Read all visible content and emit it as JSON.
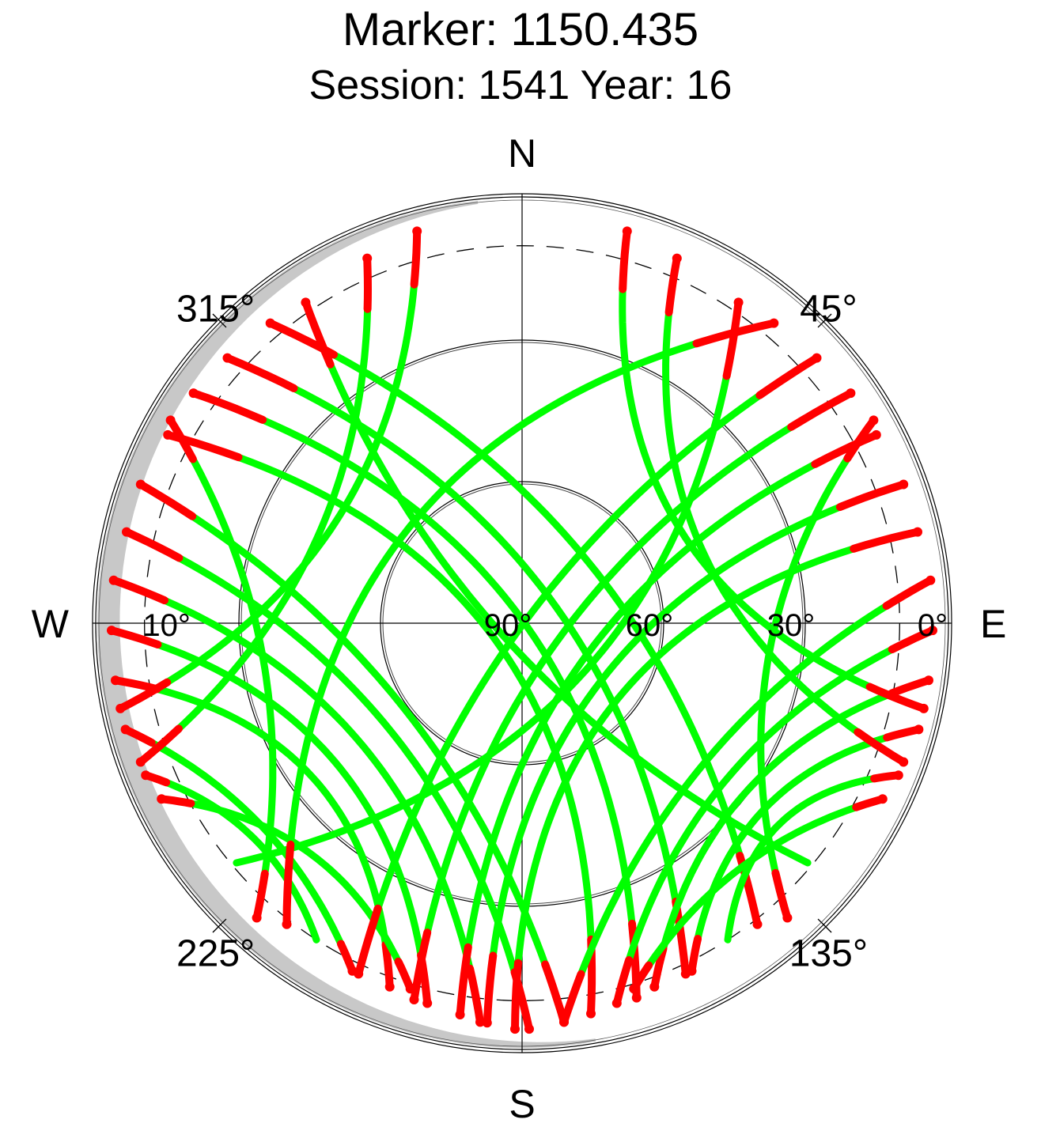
{
  "chart_data": {
    "type": "scatter",
    "projection": "polar sky plot (azimuth vs elevation)",
    "title": "Marker: 1150.435",
    "subtitle": "Session: 1541 Year: 16",
    "compass_labels": {
      "north": "N",
      "south": "S",
      "east": "E",
      "west": "W"
    },
    "azimuth_tick_labels": [
      {
        "azimuth": 45,
        "label": "45°"
      },
      {
        "azimuth": 135,
        "label": "135°"
      },
      {
        "azimuth": 225,
        "label": "225°"
      },
      {
        "azimuth": 315,
        "label": "315°"
      }
    ],
    "elevation_tick_labels": [
      {
        "elevation": 0,
        "label": "0°"
      },
      {
        "elevation": 30,
        "label": "30°"
      },
      {
        "elevation": 60,
        "label": "60°"
      },
      {
        "elevation": 90,
        "label": "90°"
      },
      {
        "elevation": 10,
        "label": "10°"
      }
    ],
    "elevation_circles": [
      30,
      60
    ],
    "cutoff_elevation_dashed": 10,
    "horizon_mask_color": "#c8c8c8",
    "series_colors": {
      "tracked": "#00ff00",
      "low_elevation": "#ff0000"
    },
    "tracks": [
      {
        "start": {
          "az": 326,
          "el": 8
        },
        "end": {
          "az": 130,
          "el": 11
        }
      },
      {
        "start": {
          "az": 320,
          "el": 7
        },
        "end": {
          "az": 142,
          "el": 9
        }
      },
      {
        "start": {
          "az": 312,
          "el": 6
        },
        "end": {
          "az": 155,
          "el": 8
        }
      },
      {
        "start": {
          "az": 305,
          "el": 5
        },
        "end": {
          "az": 163,
          "el": 7
        }
      },
      {
        "start": {
          "az": 298,
          "el": 5
        },
        "end": {
          "az": 170,
          "el": 6
        }
      },
      {
        "start": {
          "az": 290,
          "el": 4
        },
        "end": {
          "az": 174,
          "el": 5
        }
      },
      {
        "start": {
          "az": 283,
          "el": 4
        },
        "end": {
          "az": 179,
          "el": 4
        }
      },
      {
        "start": {
          "az": 276,
          "el": 3
        },
        "end": {
          "az": 186,
          "el": 5
        }
      },
      {
        "start": {
          "az": 269,
          "el": 3
        },
        "end": {
          "az": 194,
          "el": 7
        }
      },
      {
        "start": {
          "az": 262,
          "el": 3
        },
        "end": {
          "az": 200,
          "el": 8
        }
      },
      {
        "start": {
          "az": 255,
          "el": 3
        },
        "end": {
          "az": 206,
          "el": 8
        }
      },
      {
        "start": {
          "az": 248,
          "el": 4
        },
        "end": {
          "az": 213,
          "el": 10
        }
      },
      {
        "start": {
          "az": 244,
          "el": 5
        },
        "end": {
          "az": 197,
          "el": 9
        }
      },
      {
        "start": {
          "az": 34,
          "el": 8
        },
        "end": {
          "az": 230,
          "el": 11
        }
      },
      {
        "start": {
          "az": 40,
          "el": 7
        },
        "end": {
          "az": 218,
          "el": 9
        }
      },
      {
        "start": {
          "az": 48,
          "el": 6
        },
        "end": {
          "az": 205,
          "el": 8
        }
      },
      {
        "start": {
          "az": 55,
          "el": 5
        },
        "end": {
          "az": 196,
          "el": 7
        }
      },
      {
        "start": {
          "az": 62,
          "el": 5
        },
        "end": {
          "az": 189,
          "el": 6
        }
      },
      {
        "start": {
          "az": 70,
          "el": 4
        },
        "end": {
          "az": 185,
          "el": 5
        }
      },
      {
        "start": {
          "az": 77,
          "el": 4
        },
        "end": {
          "az": 181,
          "el": 4
        }
      },
      {
        "start": {
          "az": 84,
          "el": 3
        },
        "end": {
          "az": 174,
          "el": 5
        }
      },
      {
        "start": {
          "az": 91,
          "el": 3
        },
        "end": {
          "az": 166,
          "el": 7
        }
      },
      {
        "start": {
          "az": 98,
          "el": 3
        },
        "end": {
          "az": 160,
          "el": 8
        }
      },
      {
        "start": {
          "az": 105,
          "el": 3
        },
        "end": {
          "az": 154,
          "el": 8
        }
      },
      {
        "start": {
          "az": 112,
          "el": 4
        },
        "end": {
          "az": 147,
          "el": 10
        }
      },
      {
        "start": {
          "az": 116,
          "el": 5
        },
        "end": {
          "az": 163,
          "el": 9
        }
      },
      {
        "start": {
          "az": 337,
          "el": 6
        },
        "end": {
          "az": 250,
          "el": 4
        }
      },
      {
        "start": {
          "az": 345,
          "el": 4
        },
        "end": {
          "az": 258,
          "el": 3
        }
      },
      {
        "start": {
          "az": 23,
          "el": 6
        },
        "end": {
          "az": 110,
          "el": 4
        }
      },
      {
        "start": {
          "az": 15,
          "el": 4
        },
        "end": {
          "az": 102,
          "el": 3
        }
      },
      {
        "start": {
          "az": 300,
          "el": 4
        },
        "end": {
          "az": 222,
          "el": 6
        }
      },
      {
        "start": {
          "az": 60,
          "el": 4
        },
        "end": {
          "az": 138,
          "el": 6
        }
      }
    ]
  }
}
